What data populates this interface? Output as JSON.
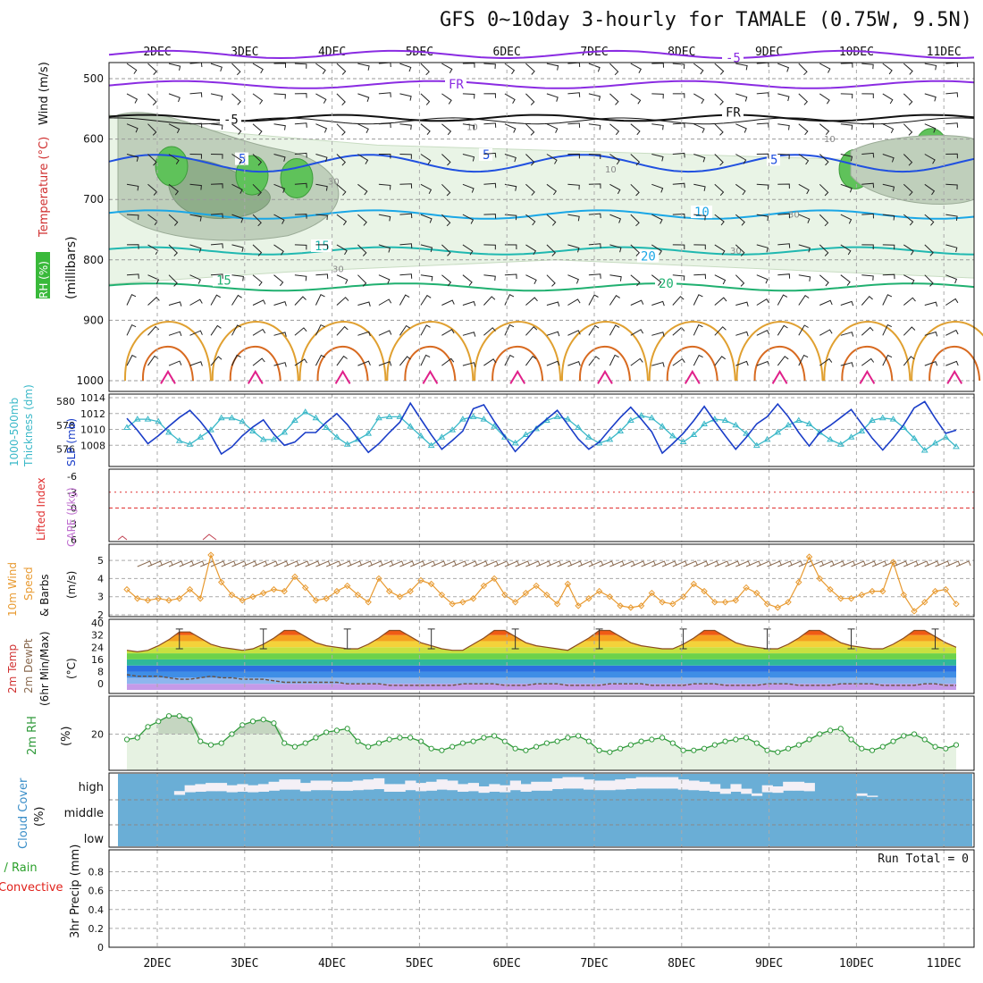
{
  "title": "GFS 0~10day 3-hourly for TAMALE (0.75W, 9.5N)",
  "days": [
    "2DEC",
    "3DEC",
    "4DEC",
    "5DEC",
    "6DEC",
    "7DEC",
    "8DEC",
    "9DEC",
    "10DEC",
    "11DEC"
  ],
  "colors": {
    "purple": "#8a2be2",
    "black": "#111111",
    "blue": "#2050e0",
    "cyan": "#1aa7e6",
    "teal": "#20b8b0",
    "green": "#20b070",
    "orange": "#e0a030",
    "darkorange": "#d86a20",
    "magenta": "#e0208a",
    "slp": "#1a3dc8",
    "thick": "#3ab8c8",
    "wind10": "#e89a30",
    "rh2m": "#2f9a3a",
    "cloud": "#6aaed6",
    "cloudgap": "#f4f0f6",
    "precip_total": "#2aa02a",
    "precip_conv": "#e0201a"
  },
  "panels": {
    "upper": {
      "ylabel_rh": "RH (%)",
      "ylabel_temp": "Temperature (°C)",
      "ylabel_wind": "Wind (m/s)",
      "ylabel_units": "(millibars)",
      "ytick_labels": [
        "500",
        "600",
        "700",
        "800",
        "900",
        "1000"
      ],
      "isotherm_labels": [
        "-5",
        "FR",
        "-5",
        "FR",
        "5",
        "5",
        "5",
        "10",
        "15",
        "20",
        "15",
        "20"
      ],
      "rh_labels": [
        "30",
        "30",
        "30",
        "10",
        "10",
        "30",
        "10"
      ]
    },
    "thickness": {
      "ylabel_left": "1000-500mb",
      "ylabel_left2": "Thickness (dm)",
      "ylabel_right": "SLP (mb)",
      "left_ticks": [
        "580",
        "578",
        "576"
      ],
      "right_ticks": [
        "1014",
        "1012",
        "1010",
        "1008"
      ]
    },
    "stability": {
      "ylabel1": "Lifted Index",
      "ylabel2": "CAPE (J/kg)",
      "ticks": [
        "-6",
        "-3",
        "0",
        "3",
        "6"
      ]
    },
    "wind10": {
      "ylabel1": "10m Wind",
      "ylabel2": "Speed",
      "ylabel3": "& Barbs",
      "units": "(m/s)",
      "ticks": [
        "5",
        "4",
        "3",
        "2"
      ]
    },
    "temp2m": {
      "ylabel1": "2m Temp",
      "ylabel2": "2m DewPt",
      "ylabel3": "(6hr Min/Max)",
      "units": "(°C)",
      "ticks": [
        "40",
        "32",
        "24",
        "16",
        "8",
        "0"
      ]
    },
    "rh2m": {
      "ylabel": "2m RH",
      "units": "(%)",
      "ticks": [
        "20"
      ]
    },
    "cloud": {
      "ylabel": "Cloud Cover",
      "units": "(%)",
      "levels": [
        "high",
        "middle",
        "low"
      ]
    },
    "precip": {
      "ylabel1": "Total / Rain",
      "ylabel2": "Convective",
      "ylabel3": "3hr Precip (mm)",
      "ticks": [
        "0.8",
        "0.6",
        "0.4",
        "0.2",
        "0"
      ],
      "run_total": "Run Total = 0"
    }
  },
  "chart_data": {
    "type": "line",
    "x_start_hours": 0,
    "x_step_hours": 3,
    "x_count": 80,
    "slp_mb": [
      1011.4,
      1009.9,
      1008.2,
      1009.2,
      1010.4,
      1011.5,
      1012.4,
      1011.0,
      1009.3,
      1006.9,
      1007.8,
      1009.2,
      1010.3,
      1011.2,
      1009.4,
      1008.0,
      1008.4,
      1009.6,
      1009.6,
      1010.9,
      1012.0,
      1010.6,
      1008.8,
      1007.1,
      1008.2,
      1009.6,
      1010.9,
      1013.3,
      1011.3,
      1009.3,
      1007.5,
      1008.6,
      1009.8,
      1012.6,
      1013.1,
      1011.0,
      1009.1,
      1007.2,
      1008.6,
      1010.2,
      1011.3,
      1012.4,
      1010.6,
      1008.8,
      1007.5,
      1008.4,
      1010.0,
      1011.5,
      1012.8,
      1011.3,
      1009.7,
      1007.0,
      1008.2,
      1009.5,
      1011.1,
      1012.9,
      1011.0,
      1009.2,
      1007.5,
      1009.0,
      1010.7,
      1011.6,
      1013.2,
      1011.6,
      1009.6,
      1007.9,
      1009.6,
      1010.5,
      1011.5,
      1012.5,
      1010.7,
      1008.9,
      1007.4,
      1008.9,
      1010.6,
      1012.7,
      1013.5,
      1011.4,
      1009.5,
      1009.9
    ],
    "thickness_dm": [
      577.8,
      578.5,
      578.5,
      578.3,
      577.4,
      576.7,
      576.4,
      577.0,
      577.6,
      578.6,
      578.6,
      578.3,
      577.5,
      576.8,
      576.8,
      577.4,
      578.4,
      579.1,
      578.6,
      577.8,
      577.0,
      576.4,
      576.8,
      577.3,
      578.6,
      578.7,
      578.7,
      577.9,
      577.1,
      576.3,
      577.0,
      577.6,
      578.5,
      578.7,
      578.5,
      577.9,
      577.0,
      576.5,
      577.2,
      577.7,
      578.4,
      578.7,
      578.5,
      577.8,
      577.0,
      576.5,
      576.8,
      577.5,
      578.4,
      578.8,
      578.6,
      577.9,
      577.1,
      576.6,
      577.2,
      578.1,
      578.5,
      578.4,
      578.0,
      577.3,
      576.3,
      576.8,
      577.4,
      578.0,
      578.4,
      578.1,
      577.4,
      576.8,
      576.4,
      577.0,
      577.5,
      578.4,
      578.6,
      578.5,
      577.8,
      576.9,
      575.9,
      576.5,
      577.0,
      576.2
    ],
    "wind10_ms": [
      3.4,
      2.9,
      2.8,
      2.9,
      2.8,
      2.9,
      3.4,
      2.9,
      5.3,
      3.8,
      3.1,
      2.8,
      3.0,
      3.2,
      3.4,
      3.3,
      4.1,
      3.5,
      2.8,
      2.9,
      3.3,
      3.6,
      3.1,
      2.7,
      4.0,
      3.3,
      3.0,
      3.3,
      3.9,
      3.7,
      3.1,
      2.6,
      2.7,
      2.9,
      3.6,
      4.0,
      3.1,
      2.7,
      3.2,
      3.6,
      3.1,
      2.6,
      3.7,
      2.5,
      2.9,
      3.3,
      3.0,
      2.5,
      2.4,
      2.5,
      3.2,
      2.7,
      2.6,
      3.0,
      3.7,
      3.3,
      2.7,
      2.7,
      2.8,
      3.5,
      3.2,
      2.6,
      2.4,
      2.7,
      3.8,
      5.2,
      4.0,
      3.4,
      2.9,
      2.9,
      3.1,
      3.3,
      3.3,
      4.9,
      3.1,
      2.2,
      2.7,
      3.3,
      3.4,
      2.6
    ],
    "temp2m_c": [
      22,
      21,
      22,
      25,
      29,
      34,
      34,
      30,
      26,
      24,
      23,
      22,
      23,
      26,
      30,
      35,
      35,
      31,
      27,
      25,
      24,
      23,
      23,
      26,
      30,
      35,
      35,
      31,
      27,
      25,
      23,
      22,
      22,
      26,
      30,
      35,
      35,
      31,
      27,
      25,
      24,
      23,
      22,
      26,
      30,
      35,
      35,
      31,
      27,
      25,
      24,
      23,
      23,
      26,
      30,
      35,
      35,
      31,
      27,
      25,
      24,
      23,
      23,
      26,
      30,
      35,
      35,
      31,
      27,
      25,
      24,
      23,
      23,
      26,
      30,
      35,
      35,
      31,
      27,
      24
    ],
    "dewpt2m_c": [
      6,
      5,
      5,
      5,
      4,
      3,
      3,
      4,
      5,
      4,
      4,
      3,
      3,
      3,
      2,
      1,
      1,
      1,
      1,
      1,
      1,
      0,
      0,
      0,
      0,
      -1,
      -1,
      -1,
      -1,
      -1,
      -1,
      -1,
      0,
      0,
      0,
      0,
      -1,
      -1,
      -1,
      0,
      0,
      0,
      -1,
      -1,
      -1,
      -1,
      0,
      0,
      0,
      0,
      -1,
      -1,
      -1,
      -1,
      0,
      0,
      0,
      -1,
      -1,
      -1,
      -1,
      0,
      0,
      0,
      -1,
      -1,
      -1,
      -1,
      0,
      0,
      0,
      0,
      -1,
      -1,
      -1,
      -1,
      0,
      0,
      -1,
      -1
    ],
    "rh2m_pct": [
      17,
      18,
      24,
      27,
      30,
      30,
      28,
      16,
      14,
      15,
      20,
      25,
      27,
      28,
      26,
      15,
      13,
      15,
      18,
      21,
      22,
      23,
      16,
      13,
      15,
      17,
      18,
      18,
      16,
      12,
      11,
      13,
      15,
      16,
      18,
      19,
      16,
      12,
      11,
      13,
      15,
      16,
      18,
      19,
      16,
      11,
      10,
      12,
      14,
      16,
      17,
      18,
      15,
      11,
      11,
      12,
      14,
      16,
      17,
      18,
      15,
      11,
      10,
      12,
      14,
      17,
      20,
      22,
      23,
      17,
      12,
      11,
      13,
      16,
      19,
      20,
      17,
      13,
      12,
      14
    ],
    "cloud_high_pct": [
      0,
      0,
      0,
      0,
      0,
      30,
      55,
      60,
      65,
      65,
      55,
      60,
      55,
      60,
      70,
      80,
      80,
      65,
      75,
      75,
      70,
      70,
      75,
      80,
      85,
      60,
      60,
      75,
      65,
      70,
      80,
      75,
      60,
      65,
      50,
      60,
      55,
      75,
      60,
      70,
      70,
      85,
      90,
      90,
      80,
      75,
      75,
      80,
      85,
      90,
      90,
      90,
      90,
      80,
      75,
      70,
      60,
      40,
      60,
      40,
      20,
      55,
      50,
      70,
      70,
      65,
      0,
      0,
      0,
      0,
      20,
      10,
      0,
      0,
      0,
      0,
      0,
      0,
      0,
      0
    ],
    "precip_total_mm": [
      0,
      0,
      0,
      0,
      0,
      0,
      0,
      0,
      0,
      0
    ],
    "run_total_mm": 0
  }
}
